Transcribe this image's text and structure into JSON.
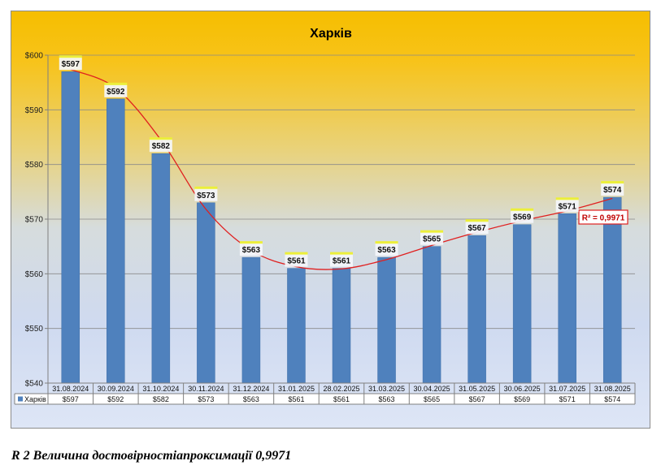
{
  "chart_data": {
    "type": "bar",
    "title": "Харків",
    "categories": [
      "31.08.2024",
      "30.09.2024",
      "31.10.2024",
      "30.11.2024",
      "31.12.2024",
      "31.01.2025",
      "28.02.2025",
      "31.03.2025",
      "30.04.2025",
      "31.05.2025",
      "30.06.2025",
      "31.07.2025",
      "31.08.2025"
    ],
    "series": [
      {
        "name": "Харків",
        "values": [
          597,
          592,
          582,
          573,
          563,
          561,
          561,
          563,
          565,
          567,
          569,
          571,
          574
        ],
        "labels": [
          "$597",
          "$592",
          "$582",
          "$573",
          "$563",
          "$561",
          "$561",
          "$563",
          "$565",
          "$567",
          "$569",
          "$571",
          "$574"
        ],
        "color": "#4f81bd"
      }
    ],
    "ylim": [
      540,
      600
    ],
    "yticks": [
      "$540",
      "$550",
      "$560",
      "$570",
      "$580",
      "$590",
      "$600"
    ],
    "xlabel": "",
    "ylabel": "",
    "grid": true,
    "legend_in_table": true,
    "trendline": {
      "type": "polynomial",
      "color": "#e02020",
      "r2_label": "R² = 0,9971"
    }
  },
  "caption": "R 2 Величина достовірностіапроксимації 0,9971"
}
